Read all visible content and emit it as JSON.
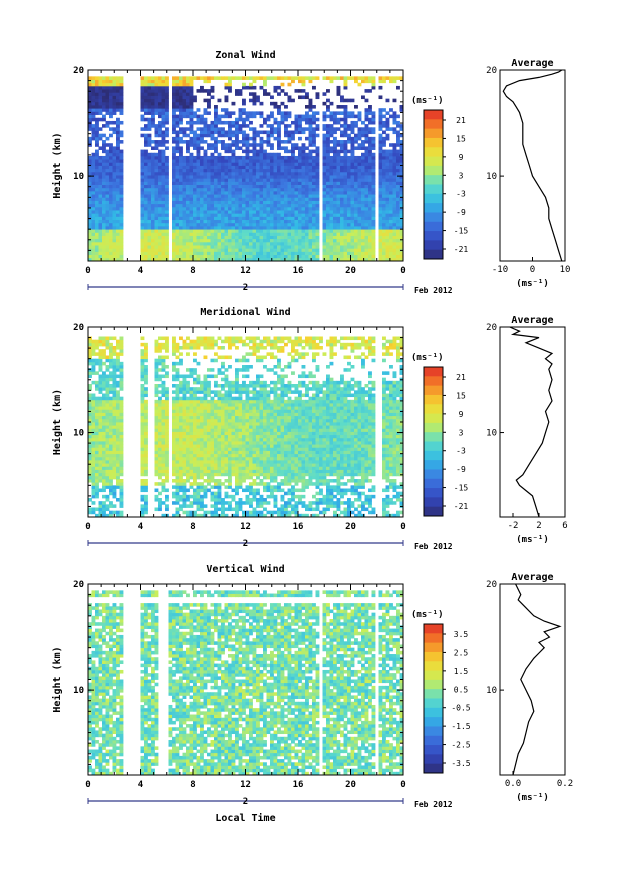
{
  "date_label": "Feb 2012",
  "day_label": "2",
  "xlabel_bottom": "Local Time",
  "chart_data": [
    {
      "type": "heatmap",
      "title": "Zonal Wind",
      "ylabel": "Height (km)",
      "ylim": [
        2,
        20
      ],
      "yticks": [
        20,
        10
      ],
      "xlim": [
        0,
        24
      ],
      "xticks": [
        "0",
        "4",
        "8",
        "12",
        "16",
        "20",
        "0"
      ],
      "colorbar": {
        "unit": "(ms⁻¹)",
        "ticks": [
          "21",
          "15",
          "9",
          "3",
          "-3",
          "-9",
          "-15",
          "-21"
        ],
        "range": [
          -24,
          24
        ]
      },
      "data_gaps_hours": [
        [
          2.6,
          3.9
        ],
        [
          6.2,
          6.5
        ],
        [
          17.6,
          17.9
        ],
        [
          21.8,
          22.2
        ]
      ],
      "average_profile": {
        "title": "Average",
        "xlabel": "(ms⁻¹)",
        "xlim": [
          -10,
          10
        ],
        "xticks": [
          "-10",
          "0",
          "10"
        ],
        "yticks": [
          "20",
          "10"
        ],
        "x": [
          9,
          8,
          7,
          6,
          5,
          5,
          4,
          2,
          0,
          -1,
          -2,
          -3,
          -3,
          -3,
          -4,
          -5,
          -6,
          -8,
          -9,
          -8,
          -4,
          2,
          6,
          8,
          9
        ],
        "y": [
          2,
          3,
          4,
          5,
          6,
          7,
          8,
          9,
          10,
          11,
          12,
          13,
          14,
          15,
          16,
          16.5,
          17,
          17.5,
          18,
          18.5,
          19,
          19.3,
          19.6,
          19.8,
          20
        ]
      }
    },
    {
      "type": "heatmap",
      "title": "Meridional Wind",
      "ylabel": "Height (km)",
      "ylim": [
        2,
        20
      ],
      "yticks": [
        20,
        10
      ],
      "xlim": [
        0,
        24
      ],
      "xticks": [
        "0",
        "4",
        "8",
        "12",
        "16",
        "20",
        "0"
      ],
      "colorbar": {
        "unit": "(ms⁻¹)",
        "ticks": [
          "21",
          "15",
          "9",
          "3",
          "-3",
          "-9",
          "-15",
          "-21"
        ],
        "range": [
          -24,
          24
        ]
      },
      "data_gaps_hours": [
        [
          2.6,
          3.9
        ],
        [
          4.5,
          5.0
        ],
        [
          6.2,
          6.5
        ],
        [
          22.0,
          22.3
        ]
      ],
      "average_profile": {
        "title": "Average",
        "xlabel": "(ms⁻¹)",
        "xlim": [
          -4,
          6
        ],
        "xticks": [
          "-2",
          "2",
          "6"
        ],
        "yticks": [
          "20",
          "10"
        ],
        "x": [
          2,
          1.5,
          1,
          0,
          -1,
          -1.5,
          -0.5,
          0.5,
          1.5,
          2.5,
          3,
          3.5,
          3,
          4,
          3.5,
          4,
          3.5,
          4,
          3,
          4,
          2,
          0,
          2,
          -2,
          -1,
          -2.5
        ],
        "y": [
          2,
          3,
          4,
          4.5,
          5,
          5.5,
          6,
          7,
          8,
          9,
          10,
          11,
          12,
          13,
          14,
          15,
          16,
          16.5,
          17,
          17.5,
          18,
          18.5,
          19,
          19.3,
          19.6,
          20
        ]
      }
    },
    {
      "type": "heatmap",
      "title": "Vertical Wind",
      "ylabel": "Height (km)",
      "xlabel": "Local Time",
      "ylim": [
        2,
        20
      ],
      "yticks": [
        20,
        10
      ],
      "xlim": [
        0,
        24
      ],
      "xticks": [
        "0",
        "4",
        "8",
        "12",
        "16",
        "20",
        "0"
      ],
      "colorbar": {
        "unit": "(ms⁻¹)",
        "ticks": [
          "3.5",
          "2.5",
          "1.5",
          "0.5",
          "-0.5",
          "-1.5",
          "-2.5",
          "-3.5"
        ],
        "range": [
          -4,
          4
        ]
      },
      "data_gaps_hours": [
        [
          2.6,
          3.9
        ],
        [
          5.3,
          6.2
        ],
        [
          17.6,
          17.9
        ],
        [
          21.8,
          22.2
        ]
      ],
      "average_profile": {
        "title": "Average",
        "xlabel": "(ms⁻¹)",
        "xlim": [
          -0.05,
          0.2
        ],
        "xticks": [
          "0.0",
          "0.2"
        ],
        "yticks": [
          "20",
          "10"
        ],
        "x": [
          0,
          0.01,
          0.02,
          0.04,
          0.05,
          0.06,
          0.08,
          0.07,
          0.05,
          0.03,
          0.05,
          0.08,
          0.1,
          0.12,
          0.1,
          0.14,
          0.12,
          0.18,
          0.12,
          0.08,
          0.04,
          0.02,
          0.03,
          0.01
        ],
        "y": [
          2,
          3,
          4,
          5,
          6,
          7,
          8,
          9,
          10,
          11,
          12,
          13,
          13.5,
          14,
          14.5,
          15,
          15.5,
          16,
          16.5,
          17,
          18,
          18.5,
          19,
          20
        ]
      }
    }
  ]
}
